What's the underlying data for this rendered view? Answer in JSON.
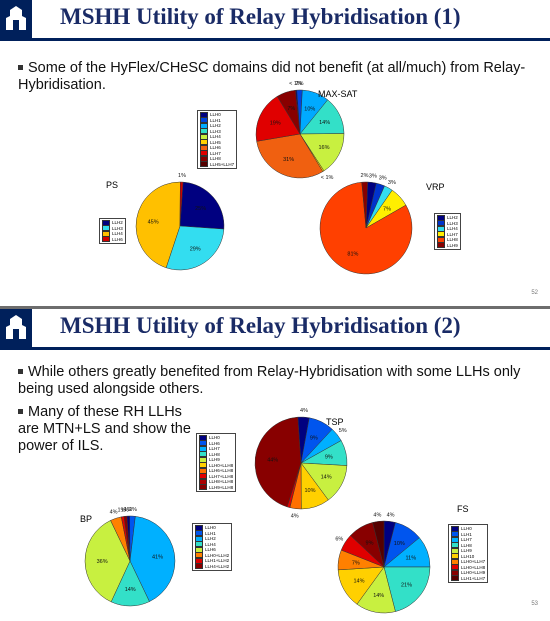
{
  "slides": [
    {
      "title": "MSHH Utility of Relay Hybridisation (1)",
      "bullets": [
        "Some of the HyFlex/CHeSC domains did not benefit (at all/much) from Relay-Hybridisation."
      ],
      "page_number": "52"
    },
    {
      "title": "MSHH Utility of Relay Hybridisation (2)",
      "bullets": [
        "While others greatly benefited from Relay-Hybridisation with some LLHs only being used alongside others.",
        "Many of these RH LLHs are MTN+LS and show the power of ILS."
      ],
      "page_number": "53"
    }
  ],
  "colors": {
    "title": "#1a2b66",
    "bar": "#00205b"
  },
  "chart_data": [
    {
      "type": "pie",
      "slide": 1,
      "title": "MAX-SAT",
      "slices": [
        {
          "label": "LLH0",
          "value": 0.5,
          "color": "#000080",
          "text": "< 1%"
        },
        {
          "label": "LLH1",
          "value": 2,
          "color": "#0044dd",
          "text": "2%"
        },
        {
          "label": "LLH2",
          "value": 10,
          "color": "#00aaff",
          "text": "10%"
        },
        {
          "label": "LLH3",
          "value": 14,
          "color": "#33e0c8",
          "text": "14%"
        },
        {
          "label": "LLH4",
          "value": 16,
          "color": "#c8f040",
          "text": "16%"
        },
        {
          "label": "LLH5",
          "value": 0.5,
          "color": "#ffd000",
          "text": "< 1%"
        },
        {
          "label": "LLH6",
          "value": 31,
          "color": "#f06010",
          "text": "31%"
        },
        {
          "label": "LLH7",
          "value": 19,
          "color": "#e00000",
          "text": "19%"
        },
        {
          "label": "LLH8",
          "value": 7,
          "color": "#880000",
          "text": "7%"
        }
      ],
      "legend": [
        "LLH0",
        "LLH1",
        "LLH2",
        "LLH3",
        "LLH4",
        "LLH5",
        "LLH6",
        "LLH7",
        "LLH8",
        "LLH5+LLH7"
      ],
      "legend_colors": [
        "#000080",
        "#0044dd",
        "#00aaff",
        "#33e0c8",
        "#c8f040",
        "#ffd000",
        "#f06010",
        "#e00000",
        "#880000",
        "#550000"
      ]
    },
    {
      "type": "pie",
      "slide": 1,
      "title": "PS",
      "slices": [
        {
          "label": "LLH2",
          "value": 25,
          "color": "#000080",
          "text": "25%"
        },
        {
          "label": "LLH3",
          "value": 29,
          "color": "#33ddf0",
          "text": "29%"
        },
        {
          "label": "LLH4",
          "value": 45,
          "color": "#ffc000",
          "text": "45%"
        },
        {
          "label": "LLH6",
          "value": 1,
          "color": "#d00000",
          "text": "1%"
        }
      ],
      "legend": [
        "LLH2",
        "LLH3",
        "LLH4",
        "LLH6"
      ],
      "legend_colors": [
        "#000080",
        "#33ddf0",
        "#ffc000",
        "#d00000"
      ]
    },
    {
      "type": "pie",
      "slide": 1,
      "title": "VRP",
      "slices": [
        {
          "label": "LLH2",
          "value": 3,
          "color": "#000080",
          "text": "3%"
        },
        {
          "label": "LLH3",
          "value": 3,
          "color": "#0033cc",
          "text": "3%"
        },
        {
          "label": "LLH4",
          "value": 3,
          "color": "#33ddf0",
          "text": "3%"
        },
        {
          "label": "LLH7",
          "value": 7,
          "color": "#ffee00",
          "text": "7%"
        },
        {
          "label": "LLH8",
          "value": 81,
          "color": "#ff4000",
          "text": "81%"
        },
        {
          "label": "LLH9",
          "value": 2,
          "color": "#880000",
          "text": "2%"
        }
      ],
      "legend": [
        "LLH2",
        "LLH3",
        "LLH4",
        "LLH7",
        "LLH8",
        "LLH9"
      ],
      "legend_colors": [
        "#000080",
        "#0033cc",
        "#33ddf0",
        "#ffee00",
        "#ff4000",
        "#880000"
      ]
    },
    {
      "type": "pie",
      "slide": 2,
      "title": "TSP",
      "slices": [
        {
          "label": "LLH0",
          "value": 4,
          "color": "#000080",
          "text": "4%"
        },
        {
          "label": "LLH6",
          "value": 9,
          "color": "#0055ee",
          "text": "9%"
        },
        {
          "label": "LLH7",
          "value": 5,
          "color": "#00b0ff",
          "text": "5%"
        },
        {
          "label": "LLH8",
          "value": 9,
          "color": "#33e0c8",
          "text": "9%"
        },
        {
          "label": "LLH9",
          "value": 14,
          "color": "#c8f040",
          "text": "14%"
        },
        {
          "label": "LLH0+LLH8",
          "value": 10,
          "color": "#ffd000",
          "text": "10%"
        },
        {
          "label": "LLH7+LLH8",
          "value": 4,
          "color": "#ff7000",
          "text": "4%"
        },
        {
          "label": "LLH8+LLH8",
          "value": 1,
          "color": "#e00000",
          "text": ""
        },
        {
          "label": "LLH9+LLH8",
          "value": 44,
          "color": "#880000",
          "text": "44%"
        }
      ],
      "legend": [
        "LLH0",
        "LLH6",
        "LLH7",
        "LLH8",
        "LLH9",
        "LLH0+LLH8",
        "LLH6+LLH8",
        "LLH7+LLH8",
        "LLH8+LLH8",
        "LLH9+LLH8"
      ],
      "legend_colors": [
        "#000080",
        "#0055ee",
        "#00b0ff",
        "#33e0c8",
        "#c8f040",
        "#ffd000",
        "#ff7000",
        "#e00000",
        "#aa0000",
        "#880000"
      ]
    },
    {
      "type": "pie",
      "slide": 2,
      "title": "BP",
      "slices": [
        {
          "label": "LLH0",
          "value": 1,
          "color": "#000080",
          "text": "1%"
        },
        {
          "label": "LLH1",
          "value": 2,
          "color": "#0055ee",
          "text": "2%"
        },
        {
          "label": "LLH2",
          "value": 41,
          "color": "#00b0ff",
          "text": "41%"
        },
        {
          "label": "LLH4",
          "value": 14,
          "color": "#33e0c8",
          "text": "14%"
        },
        {
          "label": "LLH6",
          "value": 36,
          "color": "#c8f040",
          "text": "36%"
        },
        {
          "label": "LLH0+LLH2",
          "value": 4,
          "color": "#ff8000",
          "text": "4%"
        },
        {
          "label": "LLH1+LLH2",
          "value": 1,
          "color": "#e00000",
          "text": "1%"
        },
        {
          "label": "LLH4+LLH2",
          "value": 1,
          "color": "#880000",
          "text": "1%"
        }
      ],
      "legend": [
        "LLH0",
        "LLH1",
        "LLH2",
        "LLH4",
        "LLH6",
        "LLH0+LLH2",
        "LLH1+LLH2",
        "LLH4+LLH2"
      ],
      "legend_colors": [
        "#000080",
        "#0055ee",
        "#00b0ff",
        "#33e0c8",
        "#c8f040",
        "#ff8000",
        "#e00000",
        "#880000"
      ]
    },
    {
      "type": "pie",
      "slide": 2,
      "title": "FS",
      "slices": [
        {
          "label": "LLH0",
          "value": 4,
          "color": "#000080",
          "text": "4%"
        },
        {
          "label": "LLH1",
          "value": 10,
          "color": "#0055ee",
          "text": "10%"
        },
        {
          "label": "LLH7",
          "value": 11,
          "color": "#00b0ff",
          "text": "11%"
        },
        {
          "label": "LLH8",
          "value": 21,
          "color": "#33e0c8",
          "text": "21%"
        },
        {
          "label": "LLH9",
          "value": 14,
          "color": "#c8f040",
          "text": "14%"
        },
        {
          "label": "LLH10",
          "value": 14,
          "color": "#ffd000",
          "text": "14%"
        },
        {
          "label": "LLH0+LLH7",
          "value": 7,
          "color": "#ff8000",
          "text": "7%"
        },
        {
          "label": "LLH0+LLH8",
          "value": 6,
          "color": "#e00000",
          "text": "6%"
        },
        {
          "label": "LLH0+LLH9",
          "value": 9,
          "color": "#880000",
          "text": "9%"
        },
        {
          "label": "LLH1+LLH7",
          "value": 4,
          "color": "#550000",
          "text": "4%"
        }
      ],
      "legend": [
        "LLH0",
        "LLH1",
        "LLH7",
        "LLH8",
        "LLH9",
        "LLH10",
        "LLH0+LLH7",
        "LLH0+LLH8",
        "LLH0+LLH9",
        "LLH1+LLH7"
      ],
      "legend_colors": [
        "#000080",
        "#0055ee",
        "#00b0ff",
        "#33e0c8",
        "#c8f040",
        "#ffd000",
        "#ff8000",
        "#e00000",
        "#880000",
        "#550000"
      ]
    }
  ]
}
